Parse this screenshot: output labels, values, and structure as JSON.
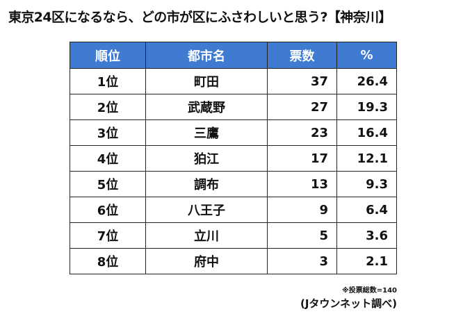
{
  "title": "東京24区になるなら、どの市が区にふさわしいと思う?【神奈川】",
  "table": {
    "headers": [
      "順位",
      "都市名",
      "票数",
      "%"
    ],
    "rows": [
      {
        "rank": "1位",
        "city": "町田",
        "votes": "37",
        "pct": "26.4"
      },
      {
        "rank": "2位",
        "city": "武蔵野",
        "votes": "27",
        "pct": "19.3"
      },
      {
        "rank": "3位",
        "city": "三鷹",
        "votes": "23",
        "pct": "16.4"
      },
      {
        "rank": "4位",
        "city": "狛江",
        "votes": "17",
        "pct": "12.1"
      },
      {
        "rank": "5位",
        "city": "調布",
        "votes": "13",
        "pct": "9.3"
      },
      {
        "rank": "6位",
        "city": "八王子",
        "votes": "9",
        "pct": "6.4"
      },
      {
        "rank": "7位",
        "city": "立川",
        "votes": "5",
        "pct": "3.6"
      },
      {
        "rank": "8位",
        "city": "府中",
        "votes": "3",
        "pct": "2.1"
      }
    ]
  },
  "footnote": "※投票総数=140",
  "source": "(Jタウンネット調べ)",
  "colors": {
    "header_background": "#3e7bd1",
    "header_text": "#ffffff",
    "border": "#222222"
  }
}
